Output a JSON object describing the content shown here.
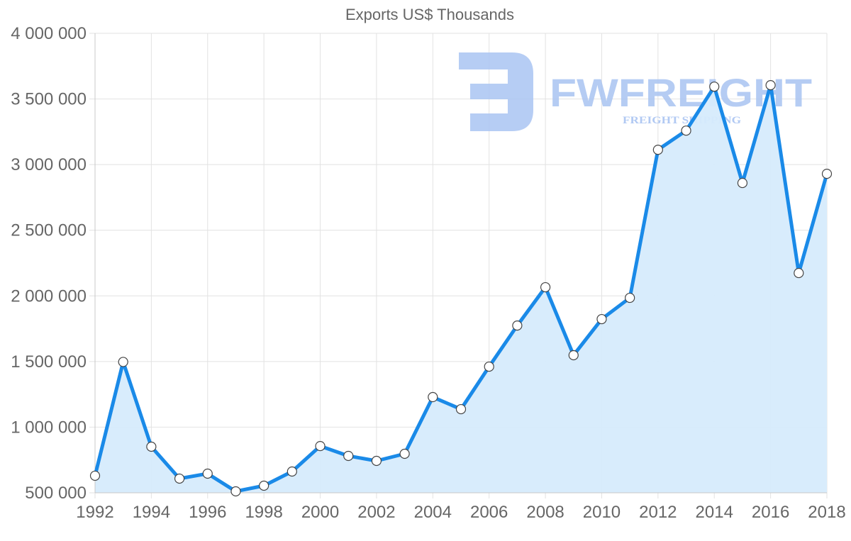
{
  "chart_data": {
    "type": "line",
    "title": "Exports US$ Thousands",
    "xlabel": "",
    "ylabel": "",
    "x": [
      1992,
      1993,
      1994,
      1995,
      1996,
      1997,
      1998,
      1999,
      2000,
      2001,
      2002,
      2003,
      2004,
      2005,
      2006,
      2007,
      2008,
      2009,
      2010,
      2011,
      2012,
      2013,
      2014,
      2015,
      2016,
      2017,
      2018
    ],
    "series": [
      {
        "name": "Exports US$ Thousands",
        "values": [
          630000,
          1497000,
          851000,
          608000,
          646000,
          511000,
          554000,
          662000,
          856000,
          781000,
          743000,
          797000,
          1229000,
          1137000,
          1461000,
          1774000,
          2066000,
          1548000,
          1823000,
          1985000,
          3113000,
          3259000,
          3594000,
          2860000,
          3605000,
          2174000,
          2930000
        ],
        "line_color": "#1a8ae8",
        "fill_color": "#d6ebfc",
        "fill": true
      }
    ],
    "ylim": [
      500000,
      4000000
    ],
    "xlim": [
      1992,
      2018
    ],
    "y_ticks": [
      500000,
      1000000,
      1500000,
      2000000,
      2500000,
      3000000,
      3500000,
      4000000
    ],
    "y_tick_labels": [
      "500 000",
      "1 000 000",
      "1 500 000",
      "2 000 000",
      "2 500 000",
      "3 000 000",
      "3 500 000",
      "4 000 000"
    ],
    "x_tick_labels": [
      "1992",
      "1994",
      "1996",
      "1998",
      "2000",
      "2002",
      "2004",
      "2006",
      "2008",
      "2010",
      "2012",
      "2014",
      "2016",
      "2018"
    ],
    "grid": true,
    "legend": "none"
  },
  "watermark": {
    "brand": "FWFREIGHT",
    "tagline": "FREIGHT SHIPPING",
    "color": "#a9c4f2"
  }
}
